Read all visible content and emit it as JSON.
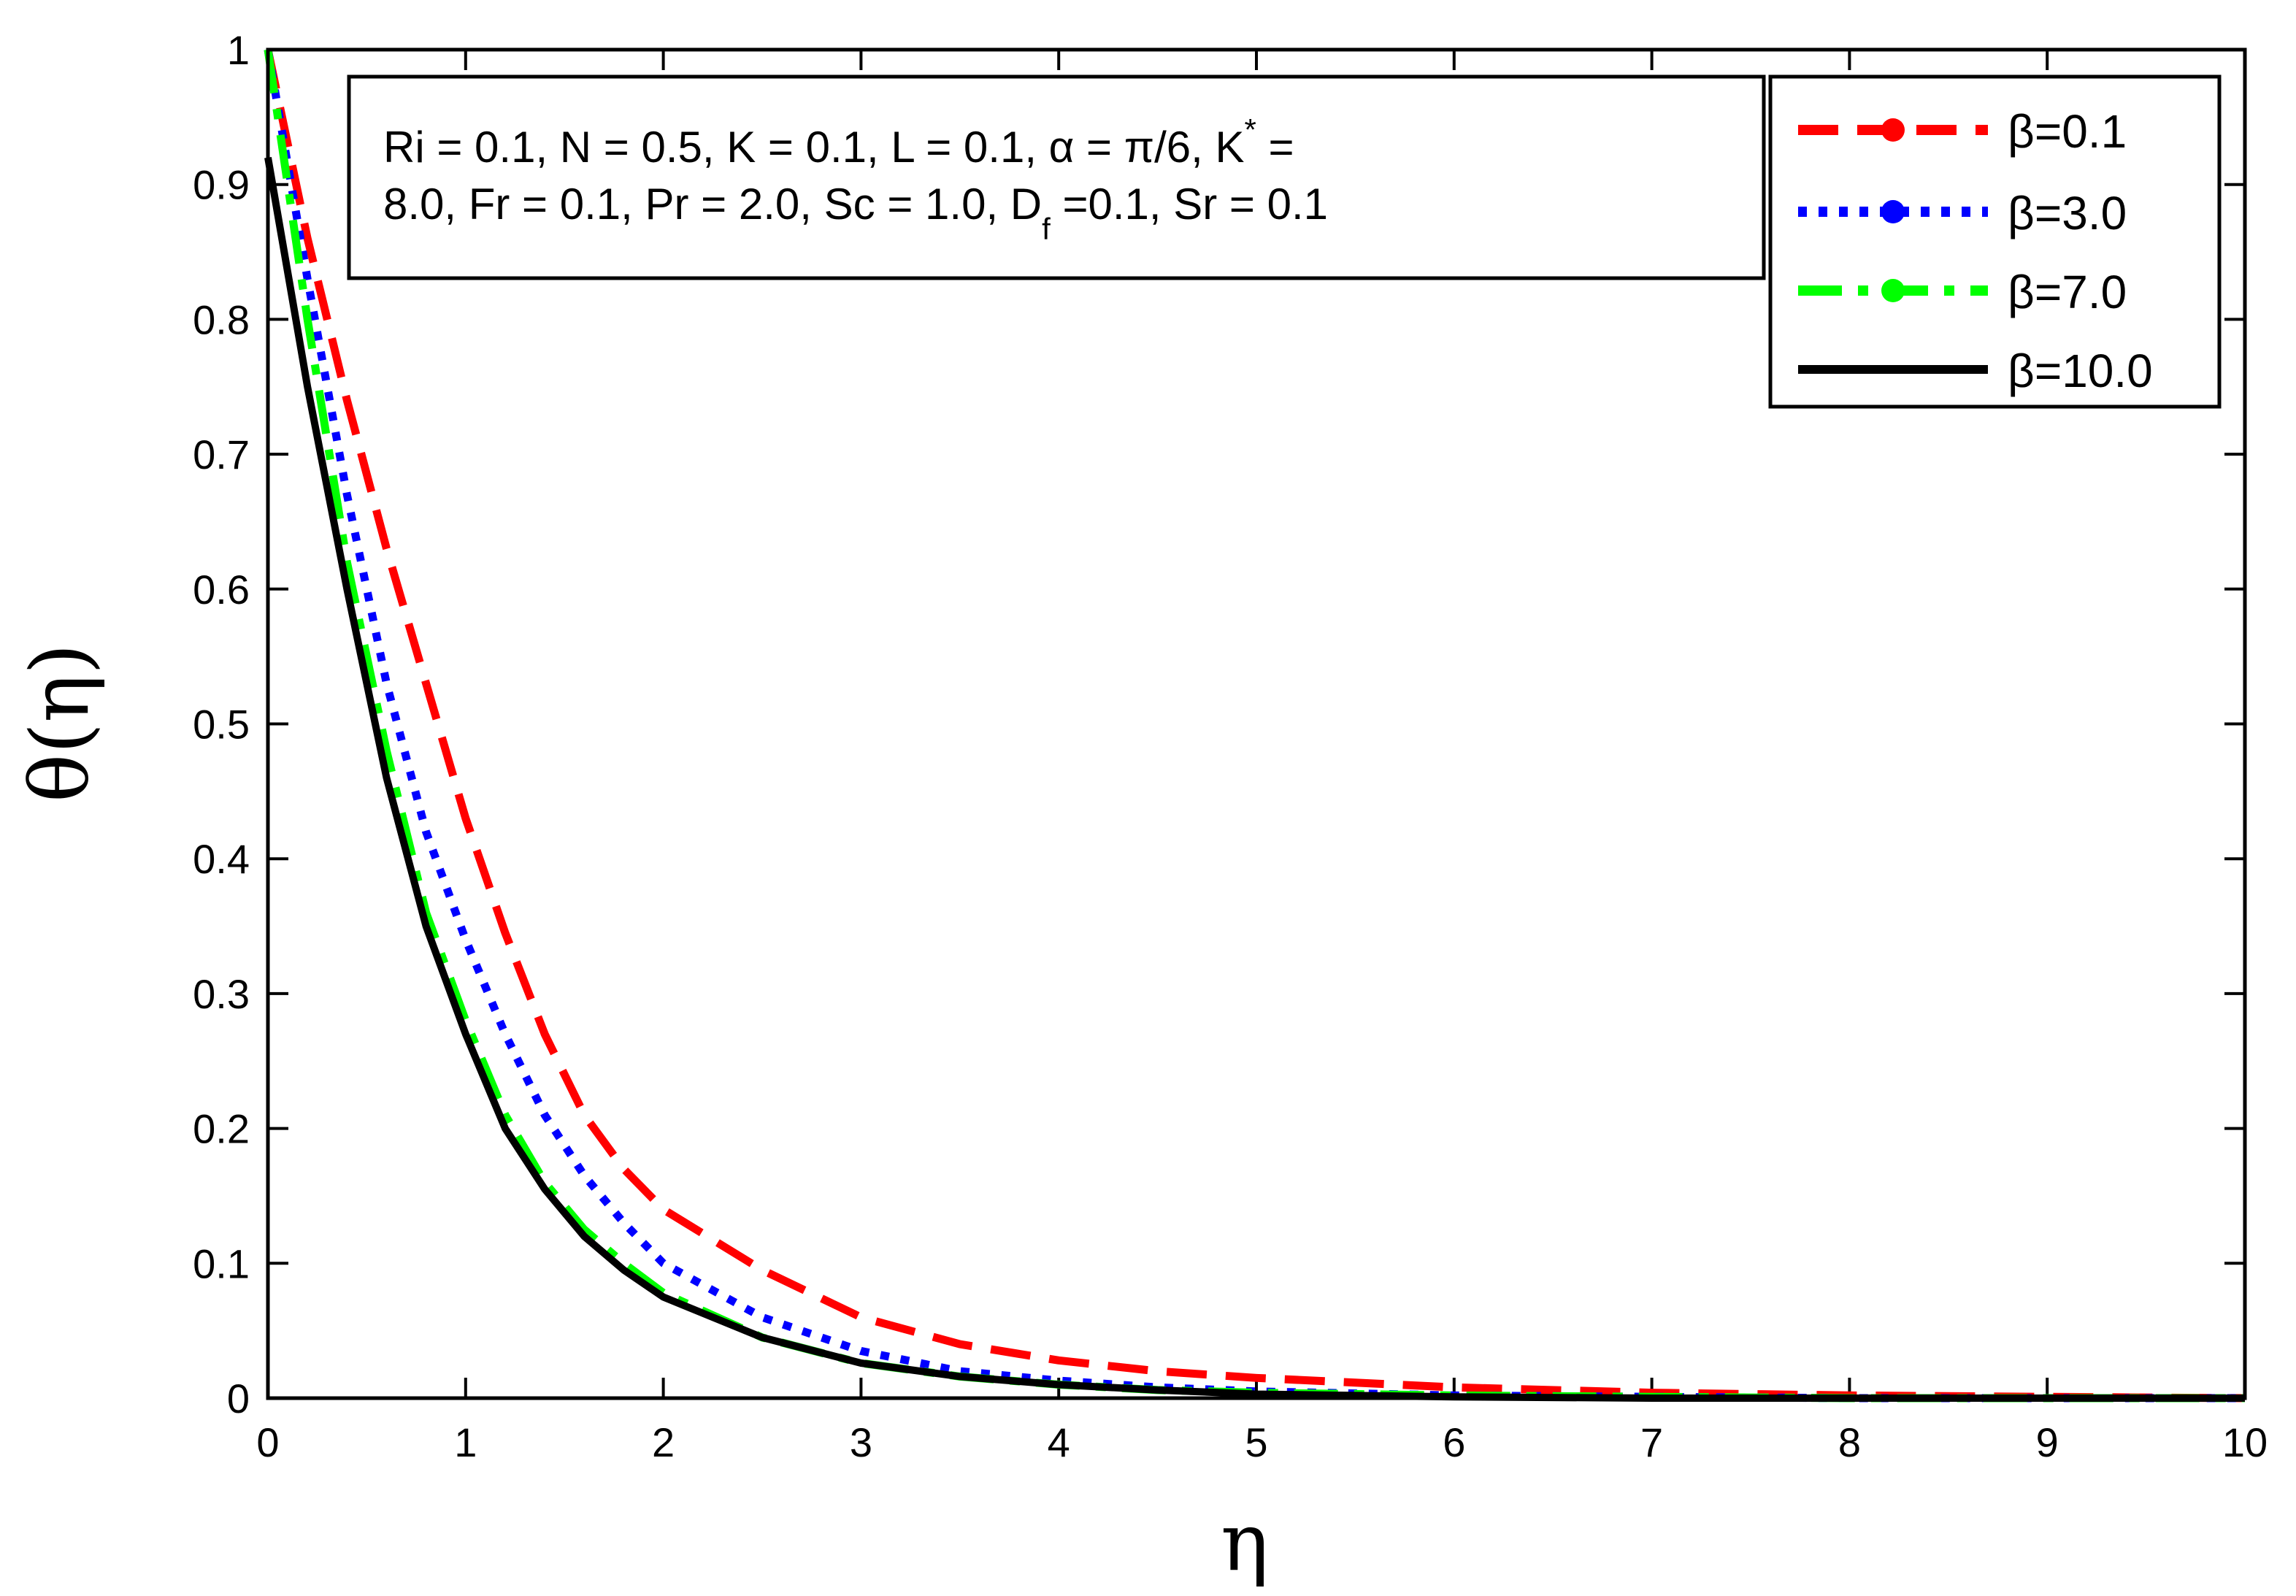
{
  "chart_data": {
    "type": "line",
    "xlabel": "η",
    "ylabel": "θ(η)",
    "xlim": [
      0,
      10
    ],
    "ylim": [
      0,
      1
    ],
    "x_ticks": [
      "0",
      "1",
      "2",
      "3",
      "4",
      "5",
      "6",
      "7",
      "8",
      "9",
      "10"
    ],
    "y_ticks": [
      "0",
      "0.1",
      "0.2",
      "0.3",
      "0.4",
      "0.5",
      "0.6",
      "0.7",
      "0.8",
      "0.9",
      "1"
    ],
    "grid": false,
    "legend_position": "top-right",
    "params_line1": "Ri = 0.1, N = 0.5, K = 0.1, L = 0.1, α = π/6, K",
    "params_line1_sup": "*",
    "params_line1_end": " =",
    "params_line2_a": "8.0, Fr = 0.1, Pr = 2.0, Sc = 1.0, D",
    "params_line2_sub": "f",
    "params_line2_b": " =0.1, Sr = 0.1",
    "series": [
      {
        "name": "β=0.1",
        "color": "#ff0000",
        "style": "dashed",
        "x": [
          0,
          0.2,
          0.4,
          0.6,
          0.8,
          1.0,
          1.2,
          1.4,
          1.6,
          1.8,
          2.0,
          2.5,
          3.0,
          3.5,
          4.0,
          4.5,
          5.0,
          6.0,
          7.0,
          8.0,
          9.0,
          10.0
        ],
        "y": [
          1.0,
          0.86,
          0.74,
          0.63,
          0.53,
          0.43,
          0.345,
          0.27,
          0.21,
          0.17,
          0.14,
          0.095,
          0.06,
          0.04,
          0.028,
          0.02,
          0.015,
          0.008,
          0.004,
          0.002,
          0.001,
          0.0
        ]
      },
      {
        "name": "β=3.0",
        "color": "#0000ff",
        "style": "dotted",
        "x": [
          0,
          0.2,
          0.4,
          0.6,
          0.8,
          1.0,
          1.2,
          1.4,
          1.6,
          1.8,
          2.0,
          2.5,
          3.0,
          3.5,
          4.0,
          4.5,
          5.0,
          6.0,
          7.0,
          8.0,
          9.0,
          10.0
        ],
        "y": [
          1.0,
          0.83,
          0.67,
          0.53,
          0.42,
          0.34,
          0.27,
          0.21,
          0.165,
          0.13,
          0.1,
          0.06,
          0.035,
          0.02,
          0.013,
          0.008,
          0.005,
          0.002,
          0.001,
          0.0,
          0.0,
          0.0
        ]
      },
      {
        "name": "β=7.0",
        "color": "#00ff00",
        "style": "dashdot",
        "x": [
          0,
          0.2,
          0.4,
          0.6,
          0.8,
          1.0,
          1.2,
          1.4,
          1.6,
          1.8,
          2.0,
          2.5,
          3.0,
          3.5,
          4.0,
          4.5,
          5.0,
          6.0,
          7.0,
          8.0,
          9.0,
          10.0
        ],
        "y": [
          1.0,
          0.8,
          0.62,
          0.48,
          0.36,
          0.28,
          0.21,
          0.16,
          0.125,
          0.1,
          0.078,
          0.045,
          0.026,
          0.016,
          0.01,
          0.006,
          0.004,
          0.002,
          0.001,
          0.0,
          0.0,
          0.0
        ]
      },
      {
        "name": "β=10.0",
        "color": "#000000",
        "style": "solid",
        "x": [
          0,
          0.2,
          0.4,
          0.6,
          0.8,
          1.0,
          1.2,
          1.4,
          1.6,
          1.8,
          2.0,
          2.5,
          3.0,
          3.5,
          4.0,
          4.5,
          5.0,
          6.0,
          7.0,
          8.0,
          9.0,
          10.0
        ],
        "y": [
          0.92,
          0.75,
          0.6,
          0.46,
          0.35,
          0.27,
          0.2,
          0.155,
          0.12,
          0.095,
          0.075,
          0.045,
          0.026,
          0.016,
          0.01,
          0.006,
          0.003,
          0.001,
          0.0,
          0.0,
          0.0,
          0.0
        ]
      }
    ]
  }
}
